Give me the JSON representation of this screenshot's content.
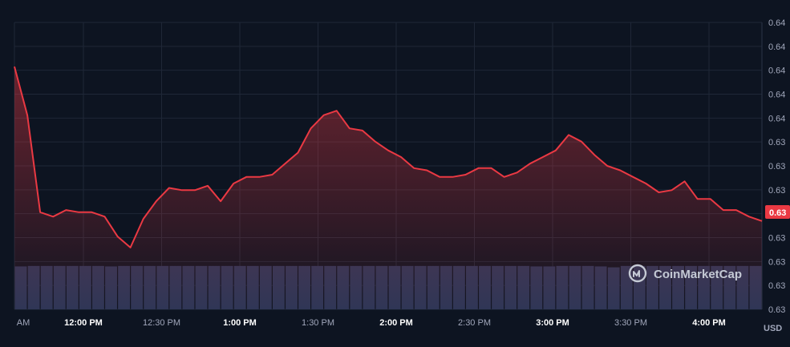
{
  "chart_data": {
    "type": "line",
    "title": "",
    "xlabel": "",
    "ylabel": "",
    "currency_label": "USD",
    "watermark": "CoinMarketCap",
    "current_price_label": "0.63",
    "y_tick_labels": [
      "0.64",
      "0.64",
      "0.64",
      "0.64",
      "0.64",
      "0.63",
      "0.63",
      "0.63",
      "0.63",
      "0.63",
      "0.63",
      "0.63",
      "0.63"
    ],
    "x_tick_labels": [
      {
        "label": "AM",
        "bold": false
      },
      {
        "label": "12:00 PM",
        "bold": true
      },
      {
        "label": "12:30 PM",
        "bold": false
      },
      {
        "label": "1:00 PM",
        "bold": true
      },
      {
        "label": "1:30 PM",
        "bold": false
      },
      {
        "label": "2:00 PM",
        "bold": true
      },
      {
        "label": "2:30 PM",
        "bold": false
      },
      {
        "label": "3:00 PM",
        "bold": true
      },
      {
        "label": "3:30 PM",
        "bold": false
      },
      {
        "label": "4:00 PM",
        "bold": true
      }
    ],
    "ylim": [
      0.6275,
      0.6405
    ],
    "series": [
      {
        "color": "#ea3943",
        "values": [
          0.6385,
          0.6363,
          0.6319,
          0.6317,
          0.632,
          0.6319,
          0.6319,
          0.6317,
          0.6308,
          0.6303,
          0.6316,
          0.6324,
          0.633,
          0.6329,
          0.6329,
          0.6331,
          0.6324,
          0.6332,
          0.6335,
          0.6335,
          0.6336,
          0.6341,
          0.6346,
          0.6357,
          0.6363,
          0.6365,
          0.6357,
          0.6356,
          0.6351,
          0.6347,
          0.6344,
          0.6339,
          0.6338,
          0.6335,
          0.6335,
          0.6336,
          0.6339,
          0.6339,
          0.6335,
          0.6337,
          0.6341,
          0.6344,
          0.6347,
          0.6354,
          0.6351,
          0.6345,
          0.634,
          0.6338,
          0.6335,
          0.6332,
          0.6328,
          0.6329,
          0.6333,
          0.6325,
          0.6325,
          0.632,
          0.632,
          0.6317,
          0.6315
        ]
      }
    ],
    "volume": {
      "color": "#2c3656",
      "values": [
        0.94,
        0.95,
        0.95,
        0.95,
        0.95,
        0.95,
        0.95,
        0.94,
        0.95,
        0.95,
        0.95,
        0.95,
        0.95,
        0.95,
        0.95,
        0.95,
        0.95,
        0.95,
        0.95,
        0.95,
        0.95,
        0.95,
        0.95,
        0.95,
        0.95,
        0.95,
        0.95,
        0.95,
        0.95,
        0.95,
        0.95,
        0.95,
        0.95,
        0.95,
        0.95,
        0.95,
        0.95,
        0.95,
        0.95,
        0.95,
        0.94,
        0.94,
        0.95,
        0.95,
        0.95,
        0.94,
        0.92,
        0.95,
        0.95,
        0.95,
        0.95,
        0.95,
        0.95,
        0.95,
        0.95,
        0.95,
        0.95,
        0.95
      ]
    },
    "grid": true,
    "colors": {
      "background": "#0d1421",
      "grid": "#1f2737",
      "axis_text": "#a1a7bb",
      "axis_text_bold": "#ffffff",
      "line": "#ea3943",
      "price_tag_bg": "#ea3943",
      "price_tag_text": "#ffffff",
      "watermark": "#c4c9d4"
    }
  }
}
